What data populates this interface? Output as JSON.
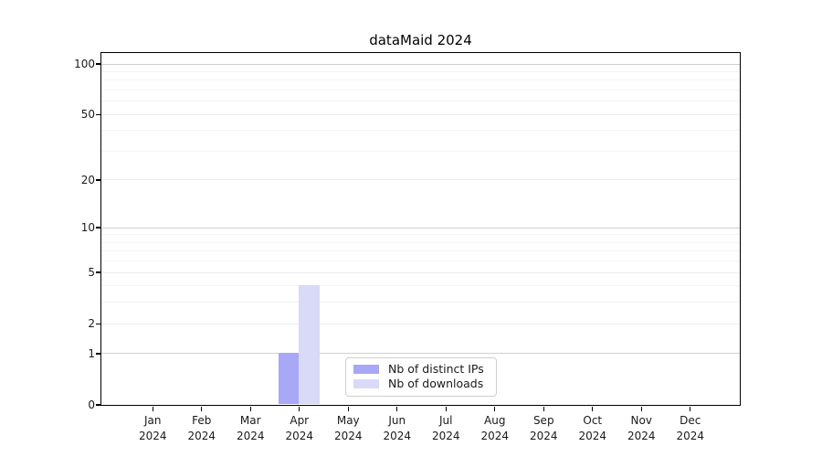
{
  "figure": {
    "title": "dataMaid 2024"
  },
  "colors": {
    "bar_distinct_ips": "#a8a8f6",
    "bar_downloads": "#d9d9f8",
    "axis": "#000000",
    "grid_major": "#cfcfcf",
    "grid_mid": "#ededed",
    "grid_minor": "#f4f4f4",
    "legend_border": "#cfcfcf",
    "background": "#ffffff",
    "text": "#1a1a1a"
  },
  "chart_data": {
    "type": "bar",
    "title": "dataMaid 2024",
    "months": [
      "Jan",
      "Feb",
      "Mar",
      "Apr",
      "May",
      "Jun",
      "Jul",
      "Aug",
      "Sep",
      "Oct",
      "Nov",
      "Dec"
    ],
    "year_label": "2024",
    "series": [
      {
        "key": "distinct-ips",
        "name": "Nb of distinct IPs",
        "color": "#a8a8f6",
        "values": [
          0,
          0,
          0,
          1,
          0,
          0,
          0,
          0,
          0,
          0,
          0,
          0
        ]
      },
      {
        "key": "downloads",
        "name": "Nb of downloads",
        "color": "#d9d9f8",
        "values": [
          0,
          0,
          0,
          4,
          0,
          0,
          0,
          0,
          0,
          0,
          0,
          0
        ]
      }
    ],
    "xlabel": "",
    "ylabel": "",
    "y_scale": "log1p",
    "y_ticks": [
      0,
      1,
      2,
      5,
      10,
      20,
      50,
      100
    ],
    "y_gridlines_major": [
      1,
      10,
      100
    ],
    "y_gridlines_mid": [
      2,
      5,
      20,
      50
    ],
    "y_gridlines_minor": [
      3,
      4,
      6,
      7,
      8,
      9,
      30,
      40,
      60,
      70,
      80,
      90
    ],
    "ylim": [
      0,
      117
    ],
    "grid": true,
    "legend_position": "lower-center-inside"
  }
}
